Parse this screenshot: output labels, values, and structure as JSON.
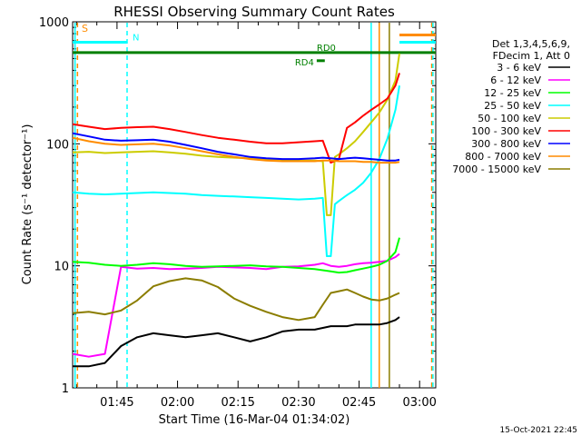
{
  "chart_data": {
    "type": "line",
    "title": "RHESSI Observing Summary Count Rates",
    "xlabel": "Start Time (16-Mar-04 01:34:02)",
    "ylabel": "Count Rate (s⁻¹ detector⁻¹)",
    "yscale": "log",
    "ylim": [
      1,
      1000
    ],
    "xlim_minutes": [
      0,
      90
    ],
    "x_ticks": [
      {
        "label": "01:45",
        "minute": 11
      },
      {
        "label": "02:00",
        "minute": 26
      },
      {
        "label": "02:15",
        "minute": 41
      },
      {
        "label": "02:30",
        "minute": 56
      },
      {
        "label": "02:45",
        "minute": 71
      },
      {
        "label": "03:00",
        "minute": 86
      }
    ],
    "y_ticks": [
      {
        "label": "1",
        "value": 1
      },
      {
        "label": "10",
        "value": 10
      },
      {
        "label": "100",
        "value": 100
      },
      {
        "label": "1000",
        "value": 1000
      }
    ],
    "legend_header": [
      "Det 1,3,4,5,6,9,",
      "FDecim 1, Att 0"
    ],
    "legend_position": "right",
    "series": [
      {
        "name": "3 - 6 keV",
        "color": "#000000",
        "x": [
          0,
          4,
          8,
          12,
          16,
          20,
          24,
          28,
          32,
          36,
          40,
          44,
          48,
          52,
          56,
          60,
          62,
          64,
          66,
          68,
          70,
          72,
          74,
          76,
          78,
          80,
          81
        ],
        "y": [
          1.5,
          1.5,
          1.6,
          2.2,
          2.6,
          2.8,
          2.7,
          2.6,
          2.7,
          2.8,
          2.6,
          2.4,
          2.6,
          2.9,
          3,
          3,
          3.1,
          3.2,
          3.2,
          3.2,
          3.3,
          3.3,
          3.3,
          3.3,
          3.4,
          3.6,
          3.8
        ]
      },
      {
        "name": "6 - 12 keV",
        "color": "#ff00ff",
        "x": [
          0,
          4,
          8,
          12,
          16,
          20,
          24,
          28,
          32,
          36,
          40,
          44,
          48,
          52,
          56,
          60,
          62,
          64,
          66,
          68,
          70,
          72,
          74,
          76,
          78,
          80,
          81
        ],
        "y": [
          1.9,
          1.8,
          1.9,
          9.8,
          9.5,
          9.6,
          9.4,
          9.5,
          9.6,
          9.8,
          9.7,
          9.6,
          9.4,
          9.8,
          9.9,
          10.2,
          10.5,
          10,
          9.8,
          10,
          10.3,
          10.5,
          10.6,
          10.8,
          11,
          11.8,
          12.5
        ]
      },
      {
        "name": "12 - 25 keV",
        "color": "#00ff00",
        "x": [
          0,
          4,
          8,
          12,
          16,
          20,
          24,
          28,
          32,
          36,
          40,
          44,
          48,
          52,
          56,
          60,
          62,
          64,
          66,
          68,
          70,
          72,
          74,
          76,
          78,
          80,
          81
        ],
        "y": [
          10.8,
          10.6,
          10.2,
          10,
          10.2,
          10.5,
          10.3,
          10,
          9.8,
          9.9,
          10,
          10.1,
          9.9,
          9.8,
          9.6,
          9.4,
          9.2,
          9,
          8.8,
          8.9,
          9.2,
          9.5,
          9.8,
          10.2,
          11,
          13,
          17
        ]
      },
      {
        "name": "25 - 50 keV",
        "color": "#00ffff",
        "x": [
          0,
          4,
          8,
          12,
          16,
          20,
          24,
          28,
          32,
          36,
          40,
          44,
          48,
          52,
          56,
          60,
          62,
          63,
          64,
          65,
          66,
          68,
          70,
          72,
          74,
          76,
          78,
          80,
          81
        ],
        "y": [
          40,
          39,
          38.5,
          39,
          39.5,
          40,
          39.5,
          39,
          38,
          37.5,
          37,
          36.5,
          36,
          35.5,
          35,
          35.5,
          36,
          12,
          12,
          32,
          34,
          38,
          42,
          48,
          58,
          75,
          110,
          190,
          300
        ]
      },
      {
        "name": "50 - 100 keV",
        "color": "#cccc00",
        "x": [
          0,
          4,
          8,
          12,
          16,
          20,
          24,
          28,
          32,
          36,
          40,
          44,
          48,
          52,
          56,
          60,
          62,
          63,
          64,
          65,
          66,
          68,
          70,
          72,
          74,
          76,
          78,
          80,
          81
        ],
        "y": [
          85,
          86,
          84,
          85,
          86,
          87,
          85,
          83,
          80,
          78,
          77,
          76,
          75,
          74,
          73,
          73,
          72,
          26,
          26,
          78,
          82,
          92,
          105,
          125,
          150,
          180,
          230,
          330,
          550
        ]
      },
      {
        "name": "100 - 300 keV",
        "color": "#ff0000",
        "x": [
          0,
          4,
          8,
          12,
          16,
          20,
          24,
          28,
          32,
          36,
          40,
          44,
          48,
          52,
          56,
          60,
          62,
          64,
          66,
          68,
          70,
          72,
          74,
          76,
          78,
          80,
          81
        ],
        "y": [
          145,
          138,
          132,
          135,
          137,
          138,
          132,
          125,
          118,
          112,
          108,
          104,
          101,
          101,
          103,
          105,
          106,
          70,
          75,
          135,
          150,
          170,
          190,
          210,
          235,
          300,
          380
        ]
      },
      {
        "name": "300 - 800 keV",
        "color": "#0000ff",
        "x": [
          0,
          4,
          8,
          12,
          16,
          20,
          24,
          28,
          32,
          36,
          40,
          44,
          48,
          52,
          56,
          60,
          62,
          64,
          66,
          68,
          70,
          72,
          74,
          76,
          78,
          80,
          81
        ],
        "y": [
          122,
          115,
          108,
          106,
          107,
          108,
          104,
          98,
          92,
          86,
          82,
          78,
          76,
          75,
          75,
          76,
          77,
          76,
          75,
          76,
          77,
          76,
          75,
          74,
          73,
          73,
          74
        ]
      },
      {
        "name": "800 - 7000 keV",
        "color": "#ff8c00",
        "x": [
          0,
          4,
          8,
          12,
          16,
          20,
          24,
          28,
          32,
          36,
          40,
          44,
          48,
          52,
          56,
          60,
          62,
          64,
          66,
          68,
          70,
          72,
          74,
          76,
          78,
          80,
          81
        ],
        "y": [
          112,
          105,
          100,
          98,
          99,
          100,
          97,
          92,
          87,
          82,
          78,
          75,
          73,
          72,
          72,
          72,
          73,
          73,
          72,
          72,
          72,
          71,
          71,
          70,
          70,
          70,
          71
        ]
      },
      {
        "name": "7000 - 15000 keV",
        "color": "#8b7d00",
        "x": [
          0,
          4,
          8,
          12,
          16,
          20,
          24,
          28,
          32,
          36,
          40,
          44,
          48,
          52,
          56,
          60,
          62,
          64,
          66,
          68,
          70,
          72,
          74,
          76,
          78,
          80,
          81
        ],
        "y": [
          4.1,
          4.2,
          4,
          4.3,
          5.2,
          6.8,
          7.5,
          7.9,
          7.6,
          6.7,
          5.4,
          4.7,
          4.2,
          3.8,
          3.6,
          3.8,
          4.8,
          6,
          6.2,
          6.4,
          6,
          5.6,
          5.3,
          5.2,
          5.4,
          5.8,
          6
        ]
      }
    ],
    "bars": [
      {
        "label": "S",
        "color": "#ff8c00",
        "y": 900,
        "x": [
          0,
          4
        ],
        "kind": "marker"
      },
      {
        "label": "N",
        "color": "#00ffff",
        "y": 680,
        "x": [
          0,
          13.5
        ]
      },
      {
        "label": "",
        "color": "#00ffff",
        "y": 680,
        "x": [
          81,
          90
        ]
      },
      {
        "label": "",
        "color": "#ff8c00",
        "y": 780,
        "x": [
          81,
          90
        ]
      },
      {
        "label": "RD0",
        "color": "#008000",
        "y": 560,
        "x": [
          0,
          90
        ]
      },
      {
        "label": "RD4",
        "color": "#008000",
        "y": 480,
        "x": [
          60.5,
          62.5
        ]
      }
    ],
    "vlines": [
      {
        "x": 0.6,
        "color": "#00ffff",
        "dashed": false
      },
      {
        "x": 1.2,
        "color": "#ff8c00",
        "dashed": true
      },
      {
        "x": 13.5,
        "color": "#00ffff",
        "dashed": true
      },
      {
        "x": 74,
        "color": "#00ffff",
        "dashed": false
      },
      {
        "x": 76,
        "color": "#ff8c00",
        "dashed": false
      },
      {
        "x": 78.5,
        "color": "#8b7d00",
        "dashed": false
      },
      {
        "x": 89,
        "color": "#ff8c00",
        "dashed": true
      },
      {
        "x": 89.3,
        "color": "#00ffff",
        "dashed": true
      }
    ],
    "timestamp": "15-Oct-2021 22:45"
  }
}
